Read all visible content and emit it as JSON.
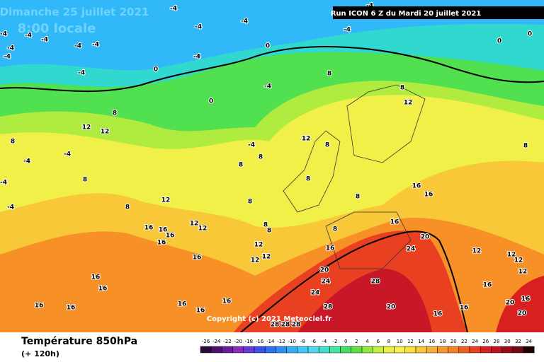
{
  "header": {
    "date": "Dimanche 25 juillet 2021",
    "time": "8:00 locale",
    "run": "Run ICON 6 Z du Mardi 20 juillet 2021"
  },
  "copyright": "Copyright (c) 2021 Meteociel.fr",
  "footer": {
    "title": "Température 850hPa",
    "lead": "(+ 120h)"
  },
  "colorbar": {
    "ticks": [
      -26,
      -24,
      -22,
      -20,
      -18,
      -16,
      -14,
      -12,
      -10,
      -8,
      -6,
      -4,
      -2,
      0,
      2,
      4,
      6,
      8,
      10,
      12,
      14,
      16,
      18,
      20,
      22,
      24,
      26,
      28,
      30,
      32,
      34
    ],
    "colors": [
      "#2a0a3a",
      "#4b0f6e",
      "#6a1a9a",
      "#8a2abe",
      "#6a3ad8",
      "#3a50e8",
      "#2a70f0",
      "#2a90f8",
      "#30b0f8",
      "#40c8f8",
      "#50d8f0",
      "#40e0d0",
      "#40e8a0",
      "#40e060",
      "#60e040",
      "#90e840",
      "#c0f040",
      "#e8f040",
      "#f8f050",
      "#f8e040",
      "#f8c838",
      "#f8b030",
      "#f89828",
      "#f88020",
      "#f06020",
      "#e84020",
      "#d82020",
      "#c01020",
      "#980818",
      "#700810",
      "#200000"
    ]
  },
  "map": {
    "labels": [
      -4,
      -4,
      -4,
      -4,
      -4,
      -4,
      -4,
      -4,
      -4,
      -4,
      -4,
      -4,
      -4,
      -4,
      -4,
      -4,
      -4,
      -4,
      -4,
      -4,
      0,
      0,
      0,
      0,
      0,
      8,
      8,
      8,
      8,
      8,
      8,
      8,
      8,
      8,
      8,
      8,
      8,
      8,
      8,
      8,
      8,
      12,
      12,
      12,
      12,
      12,
      12,
      12,
      12,
      12,
      12,
      12,
      12,
      12,
      12,
      16,
      16,
      16,
      16,
      16,
      16,
      16,
      16,
      16,
      16,
      16,
      16,
      16,
      16,
      16,
      16,
      16,
      16,
      16,
      16,
      20,
      20,
      20,
      20,
      20,
      24,
      24,
      24,
      28,
      28,
      28,
      28,
      28
    ]
  }
}
